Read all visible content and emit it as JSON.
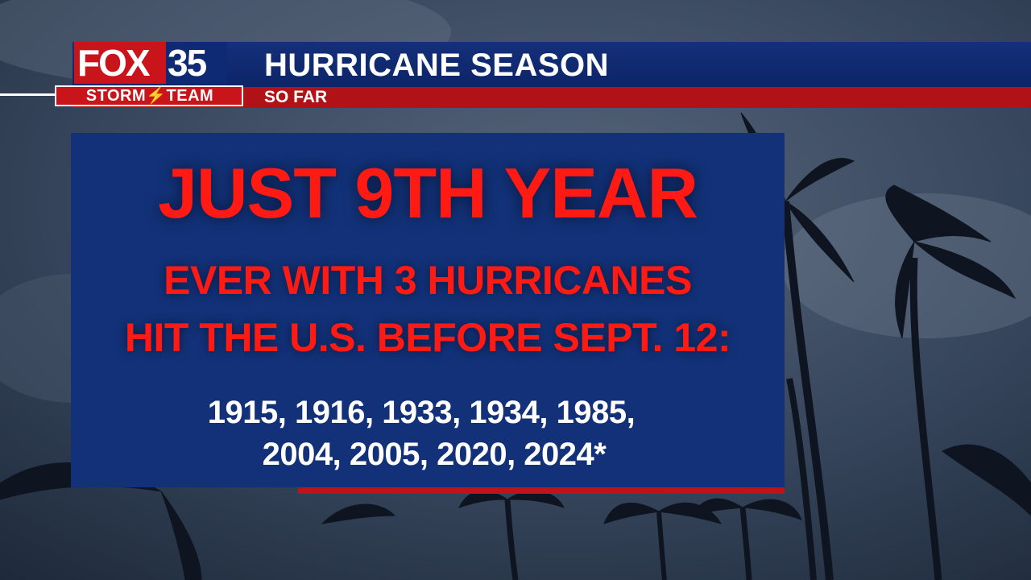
{
  "banner": {
    "title": "HURRICANE SEASON",
    "subtitle": "SO FAR"
  },
  "logo": {
    "brand": "FOX",
    "number": "35",
    "team": "STORM⚡TEAM"
  },
  "panel": {
    "headline": "JUST 9TH YEAR",
    "line1": "EVER WITH 3 HURRICANES",
    "line2": "HIT THE U.S. BEFORE SEPT. 12:",
    "years_line1": "1915, 1916, 1933, 1934, 1985,",
    "years_line2": "2004, 2005, 2020, 2024*"
  },
  "colors": {
    "navy": "#123178",
    "red_text": "#ff1a14",
    "banner_red": "#b01217",
    "brand_red": "#c8141a"
  },
  "icons": [
    "lightning-bolt-icon"
  ]
}
